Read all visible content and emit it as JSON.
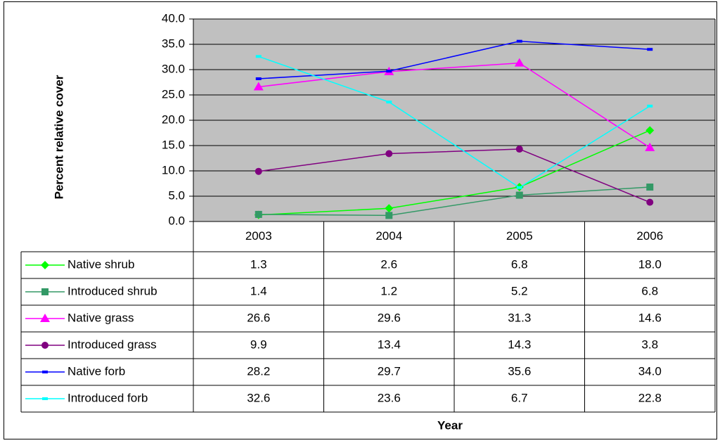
{
  "chart_data": {
    "type": "line",
    "y_label": "Percent relative cover",
    "x_label": "Year",
    "categories": [
      "2003",
      "2004",
      "2005",
      "2006"
    ],
    "ylim": [
      0,
      40
    ],
    "yticks": [
      {
        "value": 0,
        "label": "0.0"
      },
      {
        "value": 5,
        "label": "5.0"
      },
      {
        "value": 10,
        "label": "10.0"
      },
      {
        "value": 15,
        "label": "15.0"
      },
      {
        "value": 20,
        "label": "20.0"
      },
      {
        "value": 25,
        "label": "25.0"
      },
      {
        "value": 30,
        "label": "30.0"
      },
      {
        "value": 35,
        "label": "35.0"
      },
      {
        "value": 40,
        "label": "40.0"
      }
    ],
    "grid": true,
    "plot_background": "#c0c0c0",
    "series": [
      {
        "name": "Native shrub",
        "color": "#00ff00",
        "marker": "diamond",
        "values": [
          1.3,
          2.6,
          6.8,
          18.0
        ],
        "value_labels": [
          "1.3",
          "2.6",
          "6.8",
          "18.0"
        ]
      },
      {
        "name": "Introduced shrub",
        "color": "#339966",
        "marker": "square",
        "values": [
          1.4,
          1.2,
          5.2,
          6.8
        ]
      },
      {
        "name": "Native grass",
        "color": "#ff00ff",
        "marker": "triangle",
        "values": [
          26.6,
          29.6,
          31.3,
          14.6
        ]
      },
      {
        "name": "Introduced grass",
        "color": "#800080",
        "marker": "circle",
        "values": [
          9.9,
          13.4,
          14.3,
          3.8
        ]
      },
      {
        "name": "Native forb",
        "color": "#0000ff",
        "marker": "dash",
        "values": [
          28.2,
          29.7,
          35.6,
          34.0
        ],
        "value_labels": [
          "28.2",
          "29.7",
          "35.6",
          "34.0"
        ]
      },
      {
        "name": "Introduced forb",
        "color": "#00ffff",
        "marker": "dash",
        "values": [
          32.6,
          23.6,
          6.7,
          22.8
        ]
      }
    ]
  }
}
